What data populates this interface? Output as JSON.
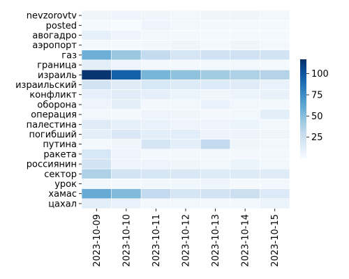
{
  "chart_data": {
    "type": "heatmap",
    "title": "",
    "xlabel": "",
    "ylabel": "",
    "colormap": "Blues",
    "grid_lines": "white",
    "x_categories": [
      "2023-10-09",
      "2023-10-10",
      "2023-10-11",
      "2023-10-12",
      "2023-10-13",
      "2023-10-14",
      "2023-10-15"
    ],
    "y_categories": [
      "nevzorovtv",
      "posted",
      "авогадро",
      "аэропорт",
      "газ",
      "граница",
      "израиль",
      "израильский",
      "конфликт",
      "оборона",
      "операция",
      "палестина",
      "погибший",
      "путина",
      "ракета",
      "россиянин",
      "сектор",
      "урок",
      "хамас",
      "цахал"
    ],
    "values": [
      [
        5,
        6,
        5,
        4,
        5,
        5,
        4
      ],
      [
        2,
        1,
        6,
        4,
        3,
        2,
        2
      ],
      [
        10,
        6,
        4,
        3,
        2,
        2,
        2
      ],
      [
        3,
        2,
        4,
        5,
        3,
        5,
        3
      ],
      [
        58,
        45,
        30,
        20,
        24,
        24,
        22
      ],
      [
        12,
        6,
        3,
        3,
        4,
        4,
        2
      ],
      [
        115,
        95,
        55,
        48,
        42,
        38,
        36
      ],
      [
        22,
        14,
        18,
        15,
        16,
        14,
        8
      ],
      [
        10,
        13,
        11,
        7,
        5,
        7,
        9
      ],
      [
        6,
        12,
        3,
        4,
        8,
        4,
        3
      ],
      [
        4,
        3,
        6,
        5,
        3,
        4,
        12
      ],
      [
        14,
        10,
        8,
        6,
        6,
        7,
        4
      ],
      [
        12,
        17,
        12,
        13,
        6,
        6,
        5
      ],
      [
        3,
        5,
        20,
        12,
        30,
        5,
        4
      ],
      [
        18,
        6,
        3,
        3,
        3,
        3,
        3
      ],
      [
        22,
        6,
        6,
        5,
        4,
        7,
        4
      ],
      [
        38,
        22,
        19,
        17,
        15,
        15,
        14
      ],
      [
        4,
        3,
        4,
        4,
        6,
        2,
        3
      ],
      [
        60,
        52,
        30,
        20,
        22,
        26,
        16
      ],
      [
        12,
        8,
        3,
        4,
        3,
        3,
        7
      ]
    ],
    "colorbar": {
      "vmin": 0,
      "vmax": 117,
      "ticks": [
        "25",
        "50",
        "75",
        "100"
      ]
    }
  }
}
